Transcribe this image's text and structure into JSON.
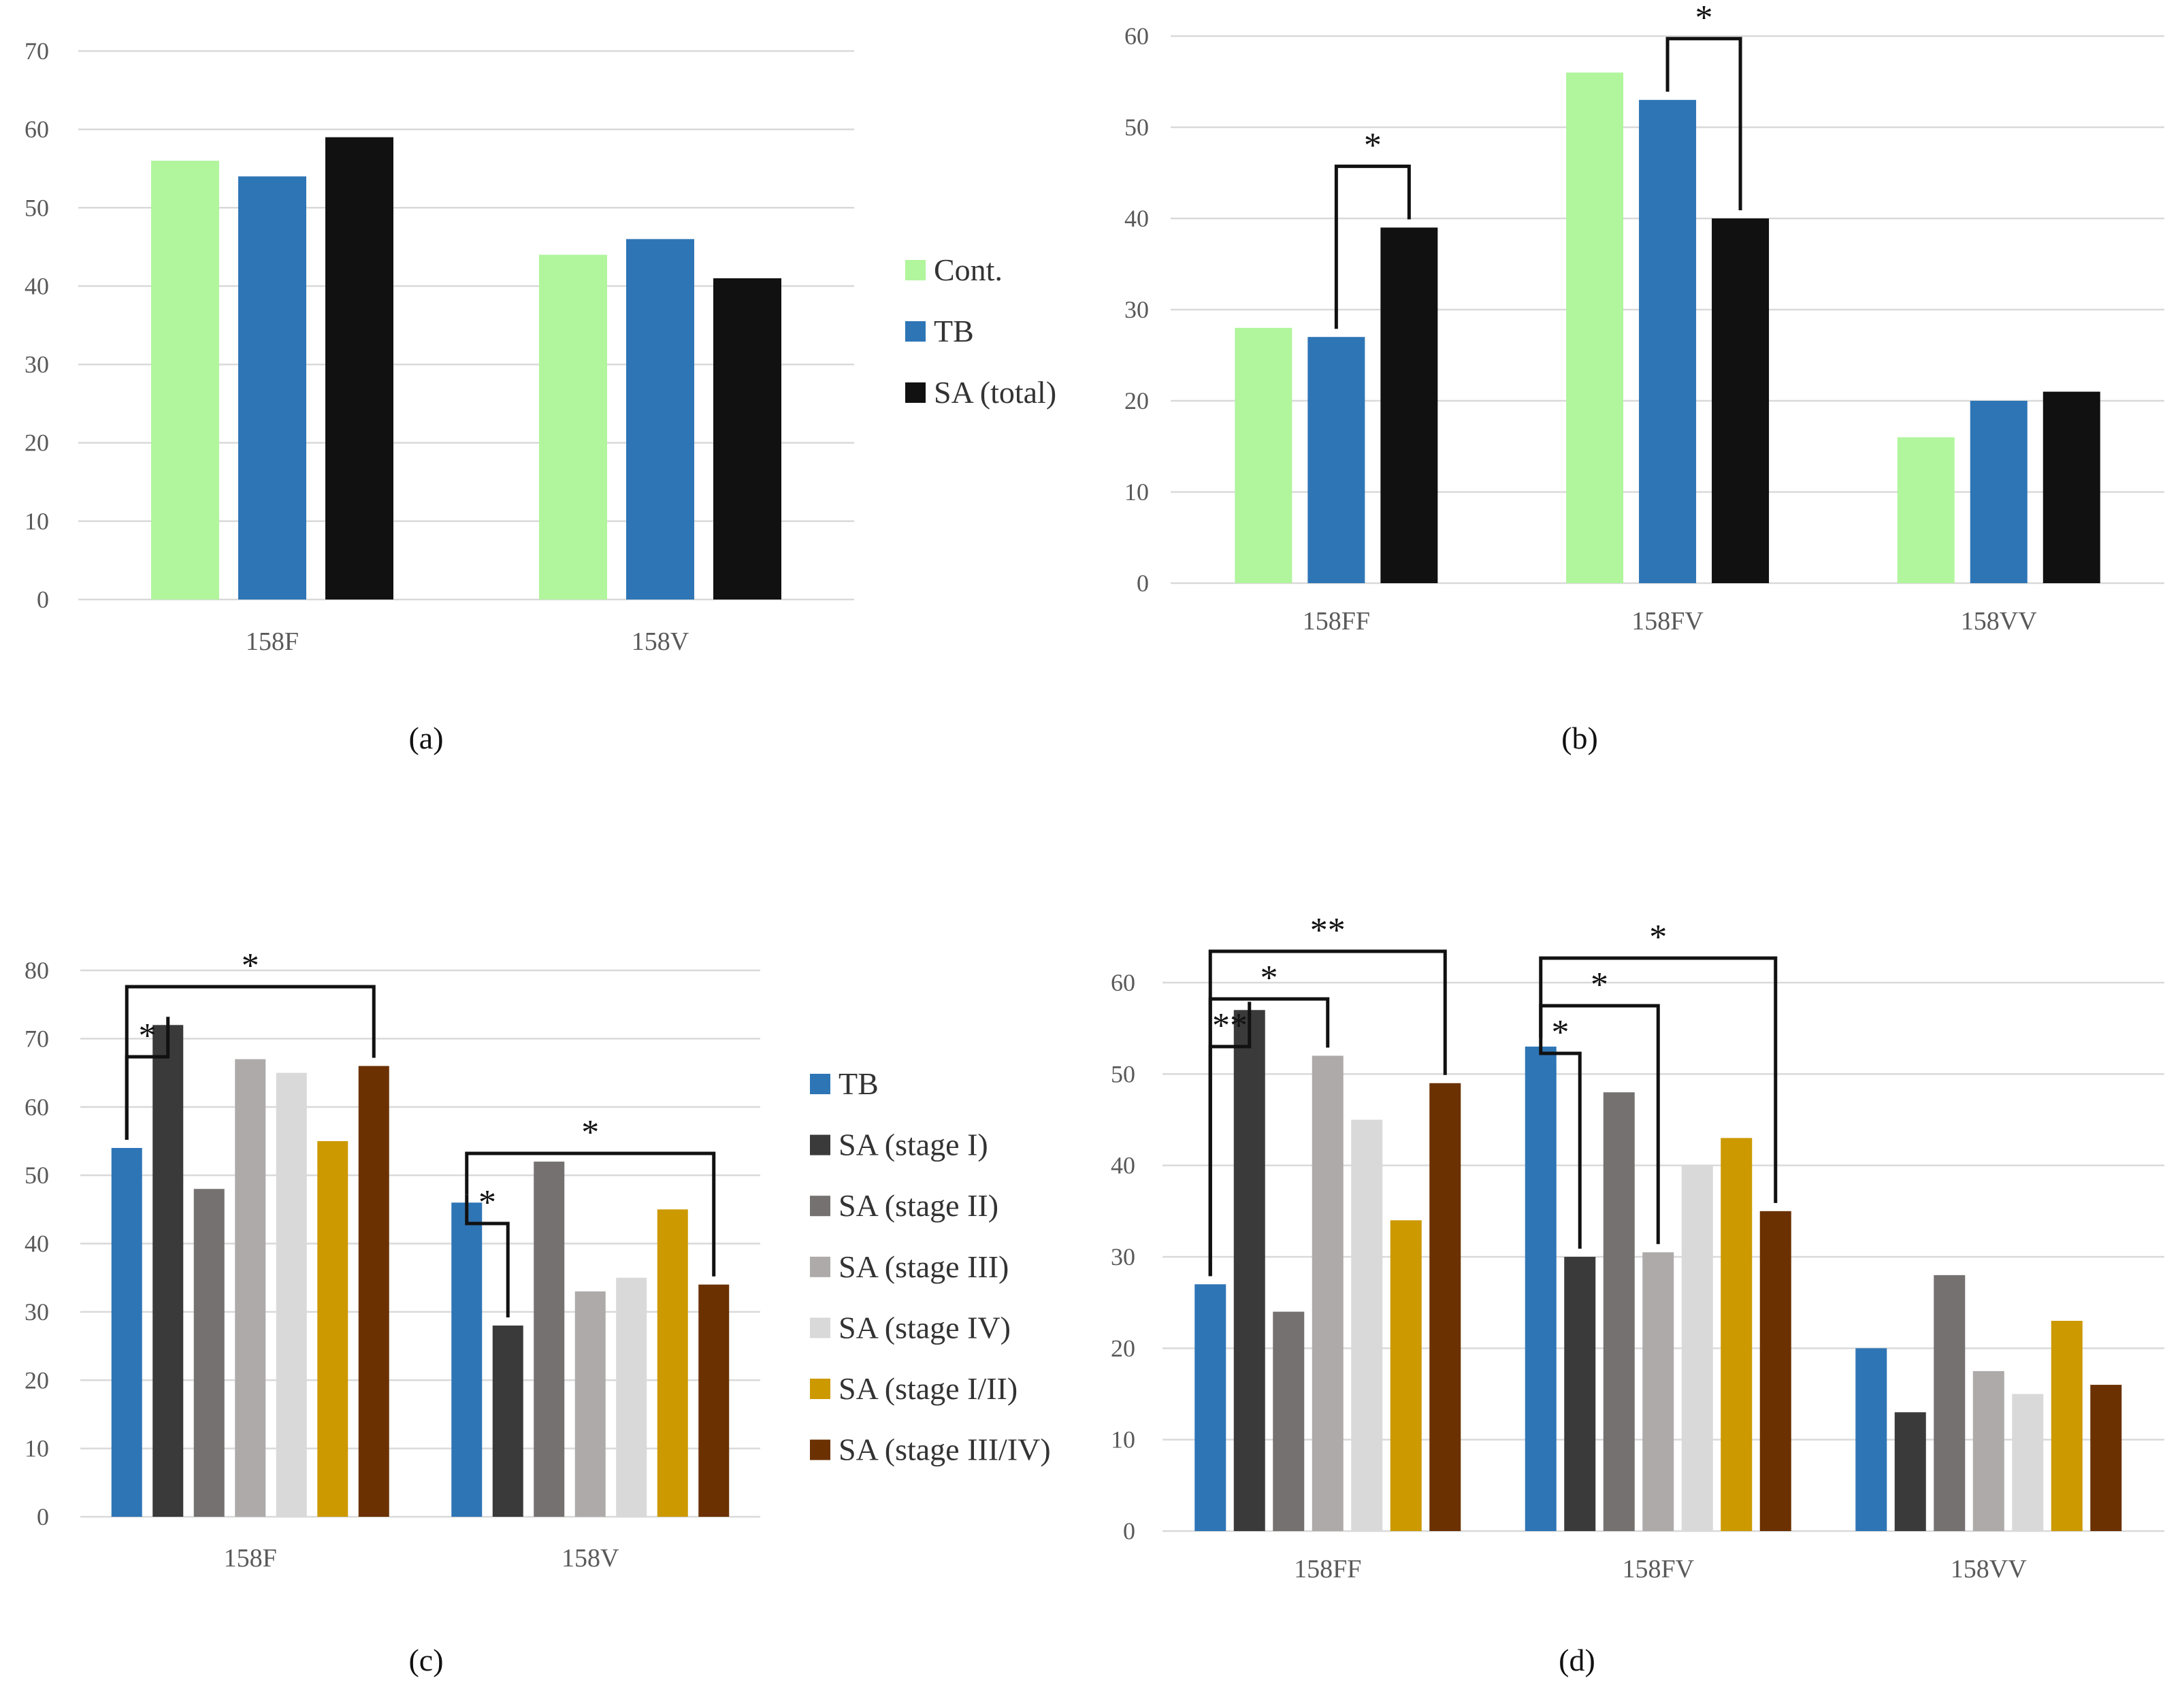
{
  "chart_data": [
    {
      "id": "a",
      "type": "bar",
      "panel_label": "(a)",
      "categories": [
        "158F",
        "158V"
      ],
      "ylim": [
        0,
        70
      ],
      "yticks": [
        0,
        10,
        20,
        30,
        40,
        50,
        60,
        70
      ],
      "grid": true,
      "legend": "right",
      "series": [
        {
          "name": "Cont.",
          "color": "#b1f59d",
          "values": [
            56,
            44
          ]
        },
        {
          "name": "TB",
          "color": "#2e75b6",
          "values": [
            54,
            46
          ]
        },
        {
          "name": "SA (total)",
          "color": "#111111",
          "values": [
            59,
            41
          ]
        }
      ],
      "annotations": []
    },
    {
      "id": "b",
      "type": "bar",
      "panel_label": "(b)",
      "categories": [
        "158FF",
        "158FV",
        "158VV"
      ],
      "ylim": [
        0,
        60
      ],
      "yticks": [
        0,
        10,
        20,
        30,
        40,
        50,
        60
      ],
      "grid": true,
      "legend": "none",
      "series": [
        {
          "name": "Cont.",
          "color": "#b1f59d",
          "values": [
            28,
            56,
            16
          ]
        },
        {
          "name": "TB",
          "color": "#2e75b6",
          "values": [
            27,
            53,
            20
          ]
        },
        {
          "name": "SA (total)",
          "color": "#111111",
          "values": [
            39,
            40,
            21
          ]
        }
      ],
      "annotations": [
        {
          "category": 0,
          "from": 1,
          "to": 2,
          "label": "*",
          "level": 1
        },
        {
          "category": 1,
          "from": 1,
          "to": 2,
          "label": "*",
          "level": 1
        }
      ]
    },
    {
      "id": "c",
      "type": "bar",
      "panel_label": "(c)",
      "categories": [
        "158F",
        "158V"
      ],
      "ylim": [
        0,
        80
      ],
      "yticks": [
        0,
        10,
        20,
        30,
        40,
        50,
        60,
        70,
        80
      ],
      "grid": true,
      "legend": "right",
      "series": [
        {
          "name": "TB",
          "color": "#2e75b6",
          "values": [
            54,
            46
          ]
        },
        {
          "name": "SA (stage I)",
          "color": "#3a3a3a",
          "values": [
            72,
            28
          ]
        },
        {
          "name": "SA (stage II)",
          "color": "#767171",
          "values": [
            48,
            52
          ]
        },
        {
          "name": "SA (stage III)",
          "color": "#aeaaaa",
          "values": [
            67,
            33
          ]
        },
        {
          "name": "SA (stage IV)",
          "color": "#d9d9d9",
          "values": [
            65,
            35
          ]
        },
        {
          "name": "SA (stage I/II)",
          "color": "#cc9900",
          "values": [
            55,
            45
          ]
        },
        {
          "name": "SA (stage III/IV)",
          "color": "#6b3100",
          "values": [
            66,
            34
          ]
        }
      ],
      "annotations": [
        {
          "category": 0,
          "from": 0,
          "to": 1,
          "label": "*",
          "level": 1
        },
        {
          "category": 0,
          "from": 0,
          "to": 6,
          "label": "*",
          "level": 2
        },
        {
          "category": 1,
          "from": 0,
          "to": 1,
          "label": "*",
          "level": 1
        },
        {
          "category": 1,
          "from": 0,
          "to": 6,
          "label": "*",
          "level": 2
        }
      ]
    },
    {
      "id": "d",
      "type": "bar",
      "panel_label": "(d)",
      "categories": [
        "158FF",
        "158FV",
        "158VV"
      ],
      "ylim": [
        0,
        60
      ],
      "yticks": [
        0,
        10,
        20,
        30,
        40,
        50,
        60
      ],
      "grid": true,
      "legend": "none",
      "series": [
        {
          "name": "TB",
          "color": "#2e75b6",
          "values": [
            27,
            53,
            20
          ]
        },
        {
          "name": "SA (stage I)",
          "color": "#3a3a3a",
          "values": [
            57,
            30,
            13
          ]
        },
        {
          "name": "SA (stage II)",
          "color": "#767171",
          "values": [
            24,
            48,
            28
          ]
        },
        {
          "name": "SA (stage III)",
          "color": "#aeaaaa",
          "values": [
            52,
            30.5,
            17.5
          ]
        },
        {
          "name": "SA (stage IV)",
          "color": "#d9d9d9",
          "values": [
            45,
            40,
            15
          ]
        },
        {
          "name": "SA (stage I/II)",
          "color": "#cc9900",
          "values": [
            34,
            43,
            23
          ]
        },
        {
          "name": "SA (stage III/IV)",
          "color": "#6b3100",
          "values": [
            49,
            35,
            16
          ]
        }
      ],
      "annotations": [
        {
          "category": 0,
          "from": 0,
          "to": 1,
          "label": "**",
          "level": 1
        },
        {
          "category": 0,
          "from": 0,
          "to": 3,
          "label": "*",
          "level": 2
        },
        {
          "category": 0,
          "from": 0,
          "to": 6,
          "label": "**",
          "level": 3
        },
        {
          "category": 1,
          "from": 0,
          "to": 1,
          "label": "*",
          "level": 1
        },
        {
          "category": 1,
          "from": 0,
          "to": 3,
          "label": "*",
          "level": 2
        },
        {
          "category": 1,
          "from": 0,
          "to": 6,
          "label": "*",
          "level": 3
        }
      ]
    }
  ]
}
